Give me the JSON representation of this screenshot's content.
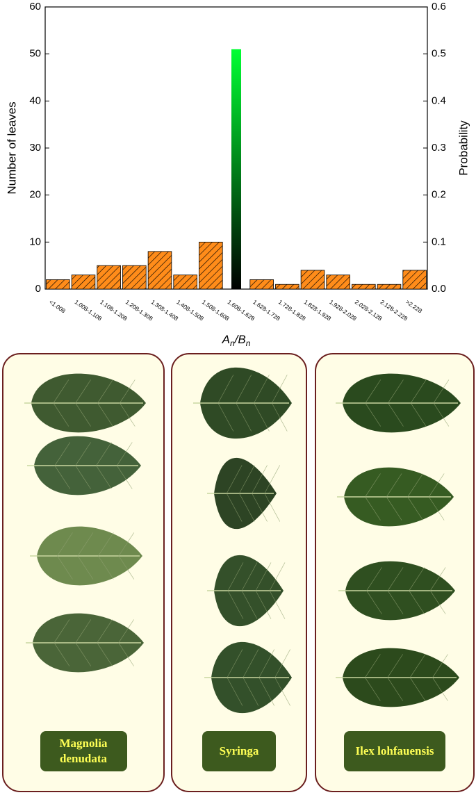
{
  "chart_data": {
    "type": "bar",
    "categories": [
      "<1.008",
      "1.008-1.108",
      "1.108-1.208",
      "1.208-1.308",
      "1.308-1.408",
      "1.408-1.508",
      "1.508-1.608",
      "1.608-1.628",
      "1.628-1.728",
      "1.728-1.828",
      "1.828-1.928",
      "1.928-2.028",
      "2.028-2.128",
      "2.128-2.228",
      ">2.228"
    ],
    "values": [
      2,
      3,
      5,
      5,
      8,
      3,
      10,
      51,
      2,
      1,
      4,
      3,
      1,
      1,
      4
    ],
    "colors": [
      "#ff8c1a",
      "#ff8c1a",
      "#ff8c1a",
      "#ff8c1a",
      "#ff8c1a",
      "#ff8c1a",
      "#ff8c1a",
      "#00ff33",
      "#ff8c1a",
      "#ff8c1a",
      "#ff8c1a",
      "#ff8c1a",
      "#ff8c1a",
      "#ff8c1a",
      "#ff8c1a"
    ],
    "ylabel": "Number of leaves",
    "y2label": "Probability",
    "xlabel_parts": [
      "A",
      "n",
      "/B",
      "n"
    ],
    "ylim": [
      0,
      60
    ],
    "yticks": [
      0,
      10,
      20,
      30,
      40,
      50,
      60
    ],
    "y2lim": [
      0,
      0.6
    ],
    "y2ticks": [
      {
        "value": 0,
        "label": "0.0"
      },
      0.1,
      0.2,
      0.3,
      0.4,
      0.5,
      0.6
    ]
  },
  "panels": [
    {
      "label": "Magnolia denudata"
    },
    {
      "label": "Syringa"
    },
    {
      "label": "Ilex lohfauensis"
    }
  ]
}
